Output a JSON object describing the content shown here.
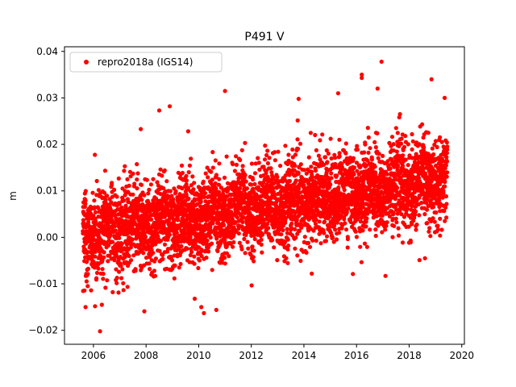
{
  "chart_data": {
    "type": "scatter",
    "title": "P491 V",
    "xlabel": "",
    "ylabel": "m",
    "xlim": [
      2004.9,
      2020.1
    ],
    "ylim": [
      -0.023,
      0.041
    ],
    "x_ticks": [
      2006,
      2008,
      2010,
      2012,
      2014,
      2016,
      2018,
      2020
    ],
    "y_ticks": [
      -0.02,
      -0.01,
      0.0,
      0.01,
      0.02,
      0.03,
      0.04
    ],
    "x_tick_labels": [
      "2006",
      "2008",
      "2010",
      "2012",
      "2014",
      "2016",
      "2018",
      "2020"
    ],
    "y_tick_labels": [
      "−0.02",
      "−0.01",
      "0.00",
      "0.01",
      "0.02",
      "0.03",
      "0.04"
    ],
    "grid": false,
    "legend_position": "top-left",
    "series": [
      {
        "name": "repro2018a (IGS14)",
        "color": "#ff0000",
        "marker": "circle",
        "x_range": [
          2005.6,
          2019.45
        ],
        "trend_start": 0.0005,
        "trend_end": 0.0125,
        "scatter_sd": 0.0045,
        "outliers": [
          {
            "x": 2006.25,
            "y": -0.0202
          },
          {
            "x": 2010.1,
            "y": -0.015
          },
          {
            "x": 2010.2,
            "y": -0.0163
          },
          {
            "x": 2009.85,
            "y": -0.0132
          },
          {
            "x": 2005.7,
            "y": -0.015
          },
          {
            "x": 2011.0,
            "y": 0.0315
          },
          {
            "x": 2016.2,
            "y": 0.035
          },
          {
            "x": 2016.2,
            "y": 0.0343
          },
          {
            "x": 2016.95,
            "y": 0.0378
          },
          {
            "x": 2016.8,
            "y": 0.032
          },
          {
            "x": 2018.85,
            "y": 0.034
          },
          {
            "x": 2019.35,
            "y": 0.03
          },
          {
            "x": 2017.1,
            "y": -0.0083
          },
          {
            "x": 2014.3,
            "y": -0.0078
          },
          {
            "x": 2008.9,
            "y": 0.0282
          },
          {
            "x": 2008.5,
            "y": 0.0273
          },
          {
            "x": 2007.8,
            "y": 0.0233
          },
          {
            "x": 2009.6,
            "y": 0.0228
          },
          {
            "x": 2013.8,
            "y": 0.0298
          },
          {
            "x": 2018.6,
            "y": -0.0045
          },
          {
            "x": 2015.3,
            "y": 0.031
          }
        ]
      }
    ]
  }
}
